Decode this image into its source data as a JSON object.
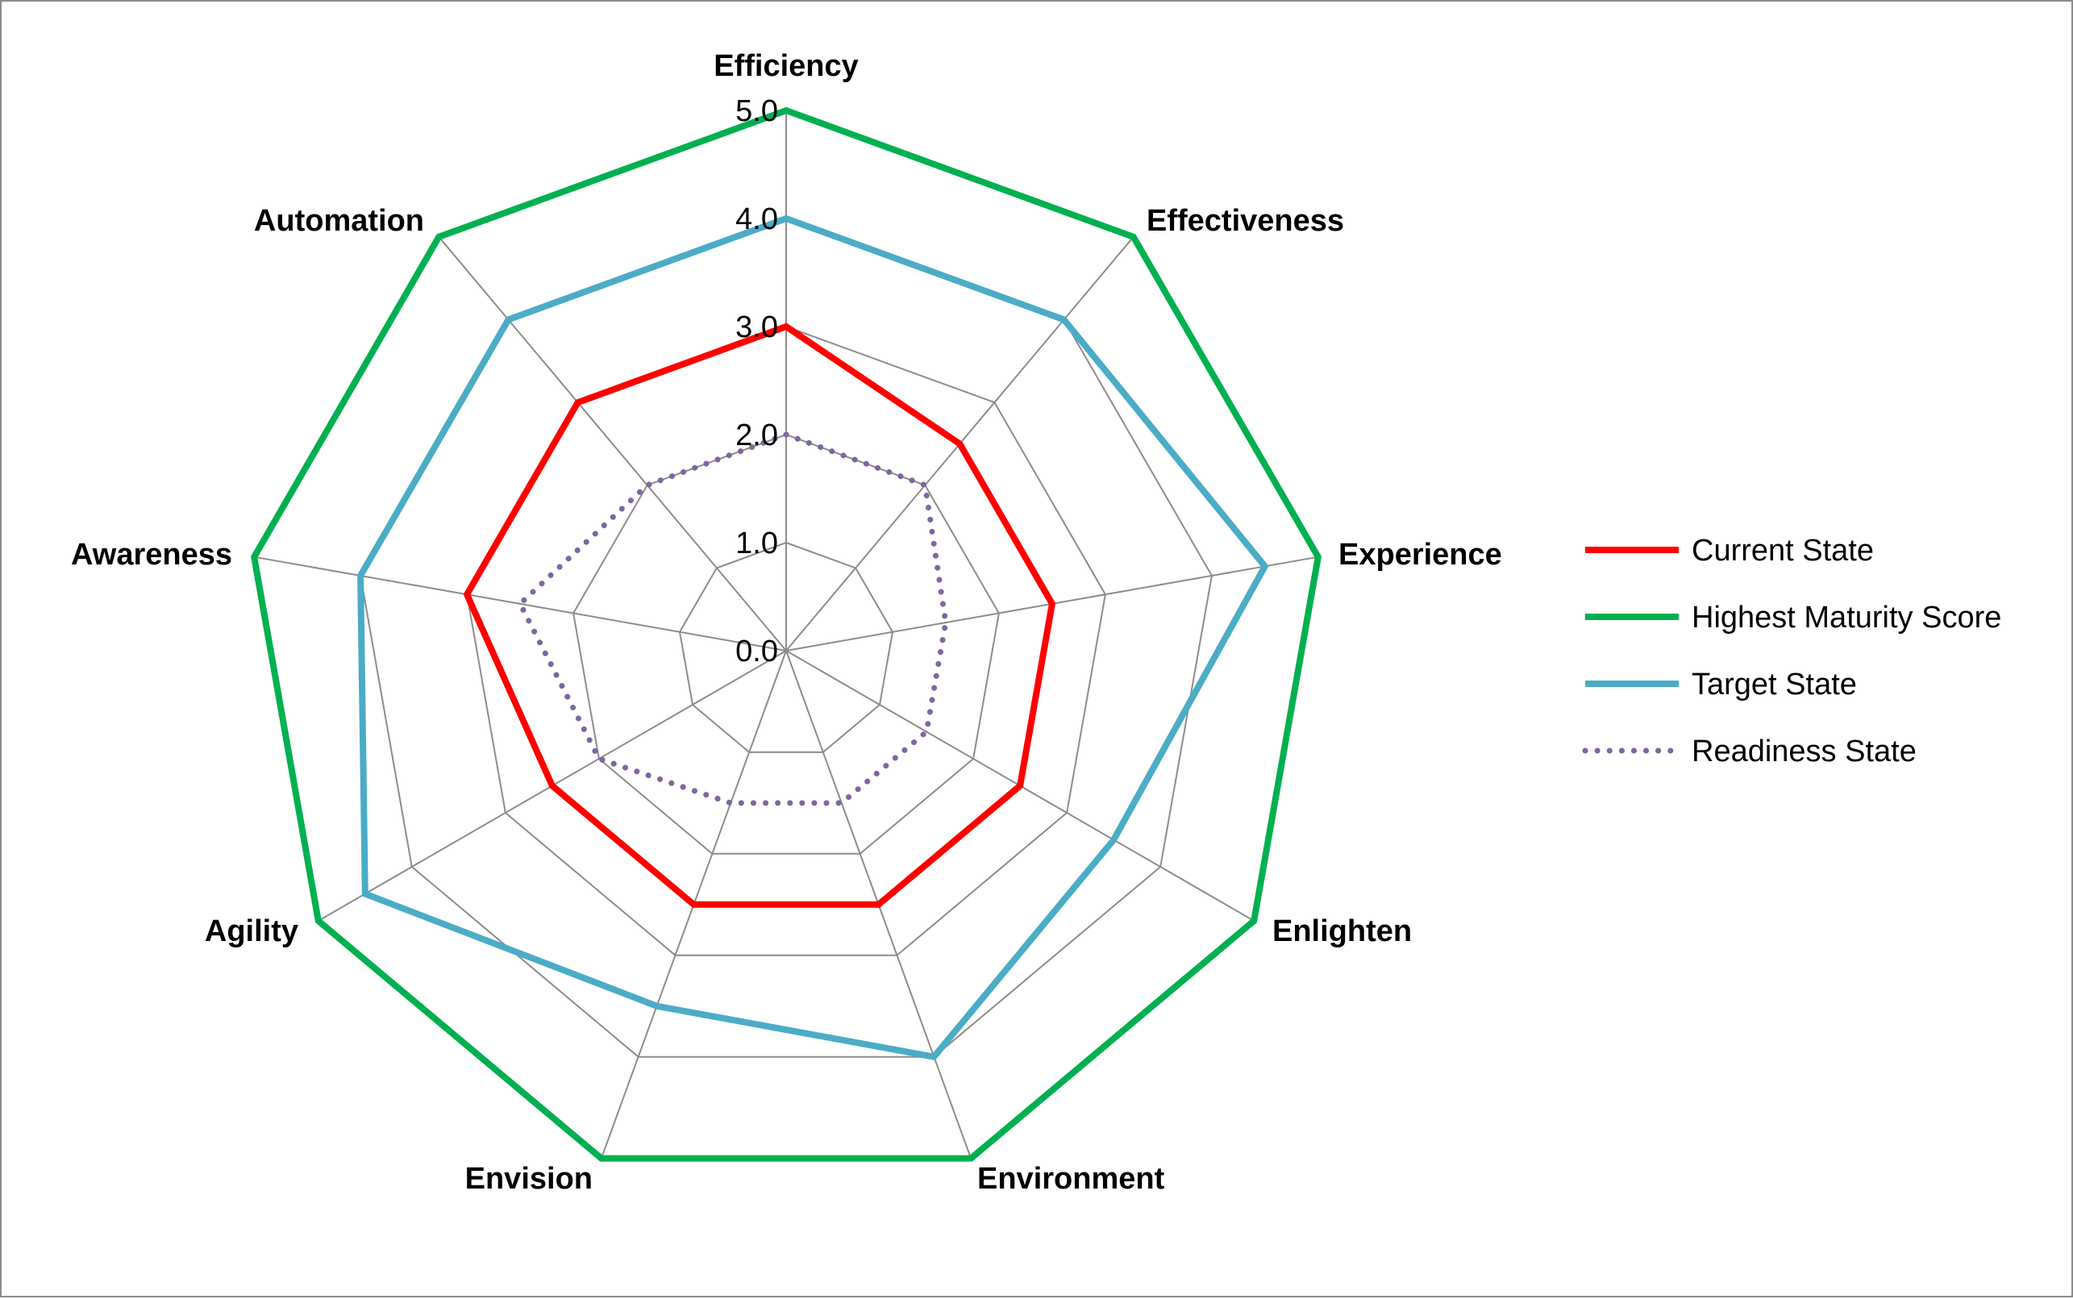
{
  "chart_data": {
    "type": "radar",
    "categories": [
      "Efficiency",
      "Effectiveness",
      "Experience",
      "Enlighten",
      "Environment",
      "Envision",
      "Agility",
      "Awareness",
      "Automation"
    ],
    "ticks": [
      "0.0",
      "1.0",
      "2.0",
      "3.0",
      "4.0",
      "5.0"
    ],
    "rlim": [
      0,
      5
    ],
    "grid": true,
    "legend_position": "right",
    "series": [
      {
        "name": "Current State",
        "color": "#ff0000",
        "dash": "solid",
        "values": [
          3.0,
          2.5,
          2.5,
          2.5,
          2.5,
          2.5,
          2.5,
          3.0,
          3.0
        ]
      },
      {
        "name": "Highest Maturity Score",
        "color": "#00b050",
        "dash": "solid",
        "values": [
          5,
          5,
          5,
          5,
          5,
          5,
          5,
          5,
          5
        ]
      },
      {
        "name": "Target State",
        "color": "#4bacc6",
        "dash": "solid",
        "values": [
          4.0,
          4.0,
          4.5,
          3.5,
          4.0,
          3.5,
          4.5,
          4.0,
          4.0
        ]
      },
      {
        "name": "Readiness State",
        "color": "#8064a2",
        "dash": "dotted",
        "values": [
          2.0,
          2.0,
          1.5,
          1.5,
          1.5,
          1.5,
          2.0,
          2.5,
          2.0
        ]
      }
    ]
  }
}
